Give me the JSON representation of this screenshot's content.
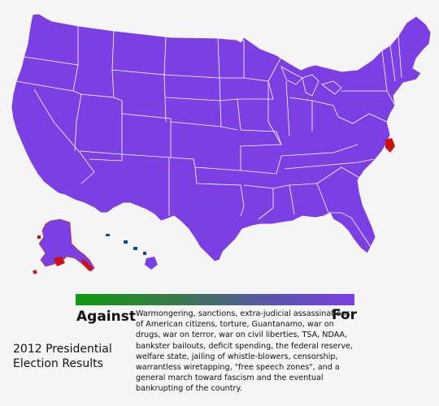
{
  "map": {
    "fill_for": "#7b3fe4",
    "fill_against": "#0f9a12",
    "state_border": "#ffffff",
    "opposing_highlight": "#cc1111",
    "water": "#0a4e8a"
  },
  "legend": {
    "left_label": "Against",
    "right_label": "For",
    "gradient_start": "#0f9a12",
    "gradient_end": "#7b3fe4",
    "policies": "Warmongering, sanctions, extra-judicial assassinations of American citizens, torture, Guantanamo, war on drugs, war on terror, war on civil liberties, TSA, NDAA, bankster bailouts, deficit spending, the federal reserve, welfare state, jailing of whistle-blowers, censorship, warrantless wiretapping, \"free speech zones\", and a general march toward fascism and the eventual bankrupting of the country."
  },
  "caption": "2012 Presidential Election Results"
}
